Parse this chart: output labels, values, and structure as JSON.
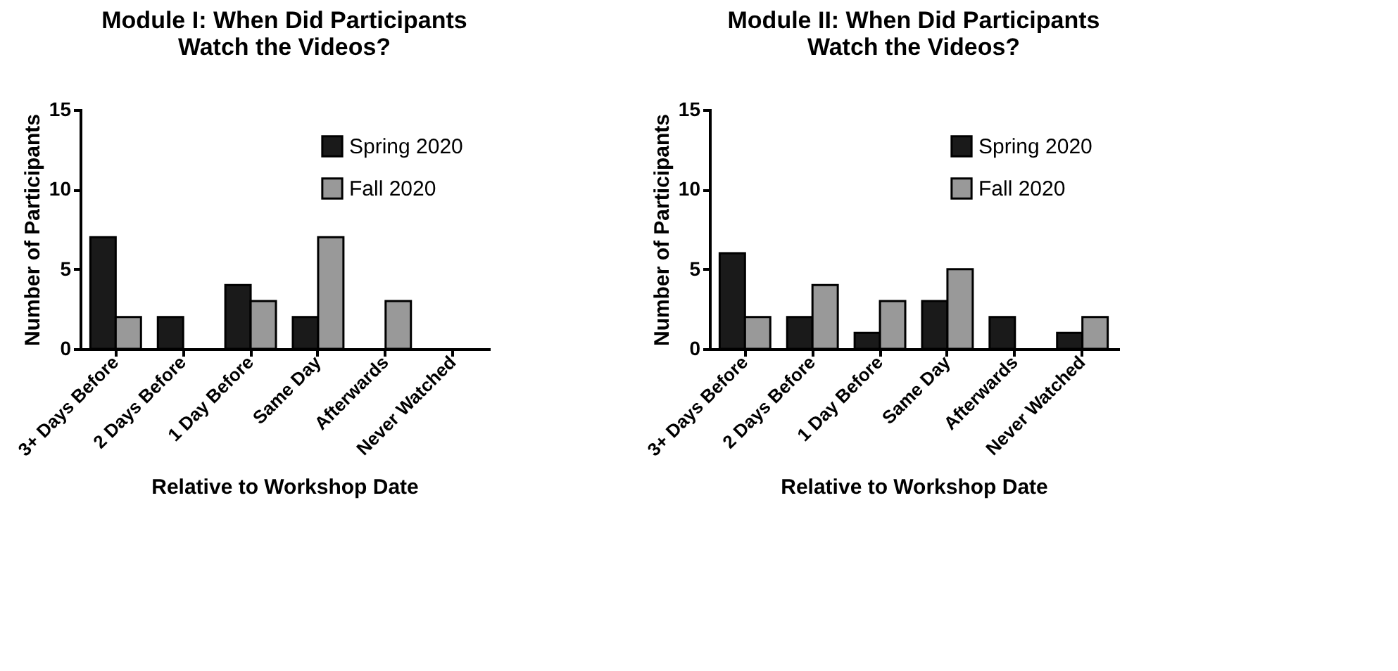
{
  "chart_data": [
    {
      "type": "bar",
      "title": "Module I:  When Did Participants\nWatch the Videos?",
      "xlabel": "Relative to Workshop Date",
      "ylabel": "Number of Participants",
      "categories": [
        "3+ Days Before",
        "2 Days Before",
        "1 Day Before",
        "Same Day",
        "Afterwards",
        "Never Watched"
      ],
      "series": [
        {
          "name": "Spring 2020",
          "color": "#1a1a1a",
          "values": [
            7,
            2,
            4,
            2,
            0,
            0
          ]
        },
        {
          "name": "Fall 2020",
          "color": "#999999",
          "values": [
            2,
            0,
            3,
            7,
            3,
            0
          ]
        }
      ],
      "ylim": [
        0,
        15
      ],
      "yticks": [
        0,
        5,
        10,
        15
      ],
      "grid": false,
      "legend": "top right"
    },
    {
      "type": "bar",
      "title": "Module II:  When Did Participants\nWatch the Videos?",
      "xlabel": "Relative to Workshop Date",
      "ylabel": "Number of Participants",
      "categories": [
        "3+ Days Before",
        "2 Days Before",
        "1 Day Before",
        "Same Day",
        "Afterwards",
        "Never Watched"
      ],
      "series": [
        {
          "name": "Spring 2020",
          "color": "#1a1a1a",
          "values": [
            6,
            2,
            1,
            3,
            2,
            1
          ]
        },
        {
          "name": "Fall 2020",
          "color": "#999999",
          "values": [
            2,
            4,
            3,
            5,
            0,
            2
          ]
        }
      ],
      "ylim": [
        0,
        15
      ],
      "yticks": [
        0,
        5,
        10,
        15
      ],
      "grid": false,
      "legend": "top right"
    }
  ]
}
